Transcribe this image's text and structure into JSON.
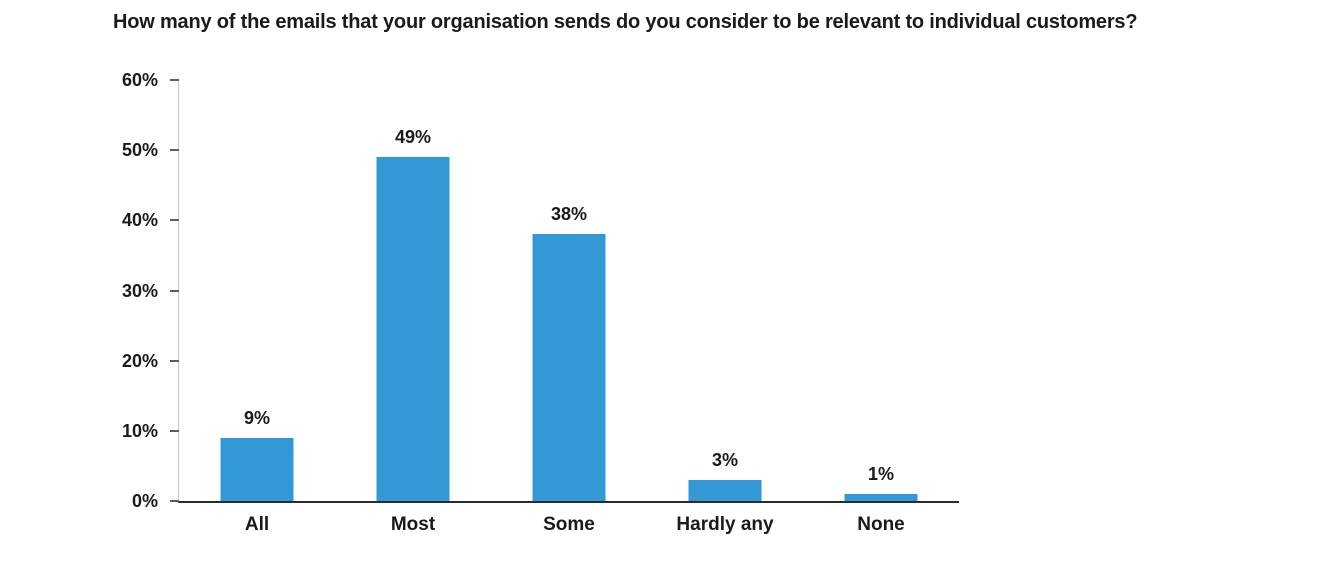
{
  "chart_data": {
    "type": "bar",
    "title": "How many of the emails that your organisation sends do you consider to be relevant to individual customers?",
    "categories": [
      "All",
      "Most",
      "Some",
      "Hardly any",
      "None"
    ],
    "values": [
      9,
      49,
      38,
      3,
      1
    ],
    "value_labels": [
      "9%",
      "49%",
      "38%",
      "3%",
      "1%"
    ],
    "xlabel": "",
    "ylabel": "",
    "ylim": [
      0,
      60
    ],
    "yticks": [
      "0%",
      "10%",
      "20%",
      "30%",
      "40%",
      "50%",
      "60%"
    ],
    "grid": false,
    "legend": false,
    "bar_color": "#3399d6"
  },
  "colors": {
    "bar": "#3399d6",
    "text": "#1a1a1a",
    "axis_line": "#c9c9c9",
    "tick": "#5f5f5f",
    "baseline": "#2b2b2b",
    "background": "#ffffff"
  }
}
